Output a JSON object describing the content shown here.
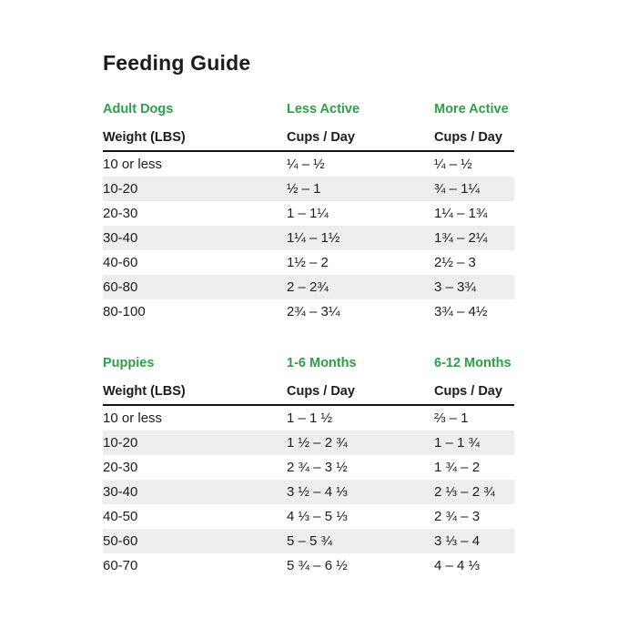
{
  "page_title": "Feeding Guide",
  "colors": {
    "accent_green": "#2f9e48",
    "stripe_gray": "#eeeeee",
    "text": "#1c1c1c",
    "background": "#ffffff"
  },
  "chart_data": [
    {
      "type": "table",
      "title": "Adult Dogs",
      "column_groups": [
        "Adult Dogs",
        "Less Active",
        "More Active"
      ],
      "columns": [
        "Weight (LBS)",
        "Cups / Day",
        "Cups / Day"
      ],
      "rows": [
        [
          "10 or less",
          "¼ – ½",
          "¼ – ½"
        ],
        [
          "10-20",
          "½ – 1",
          "¾ – 1¼"
        ],
        [
          "20-30",
          "1 – 1¼",
          "1¼ – 1¾"
        ],
        [
          "30-40",
          "1¼ – 1½",
          "1¾ – 2¼"
        ],
        [
          "40-60",
          "1½ – 2",
          "2½ – 3"
        ],
        [
          "60-80",
          "2 – 2¾",
          "3 – 3¾"
        ],
        [
          "80-100",
          "2¾ – 3¼",
          "3¾ – 4½"
        ]
      ]
    },
    {
      "type": "table",
      "title": "Puppies",
      "column_groups": [
        "Puppies",
        "1-6 Months",
        "6-12 Months"
      ],
      "columns": [
        "Weight (LBS)",
        "Cups / Day",
        "Cups / Day"
      ],
      "rows": [
        [
          "10 or less",
          "1 – 1 ½",
          "⅔ – 1"
        ],
        [
          "10-20",
          "1 ½ – 2 ¾",
          "1 – 1 ¾"
        ],
        [
          "20-30",
          "2 ¾ – 3 ½",
          "1 ¾ – 2"
        ],
        [
          "30-40",
          "3 ½ – 4 ⅓",
          "2 ⅓ – 2 ¾"
        ],
        [
          "40-50",
          "4 ⅓ – 5 ⅓",
          "2 ¾ – 3"
        ],
        [
          "50-60",
          "5 – 5 ¾",
          "3 ⅓ – 4"
        ],
        [
          "60-70",
          "5 ¾ – 6 ½",
          "4 – 4 ⅓"
        ]
      ]
    }
  ]
}
